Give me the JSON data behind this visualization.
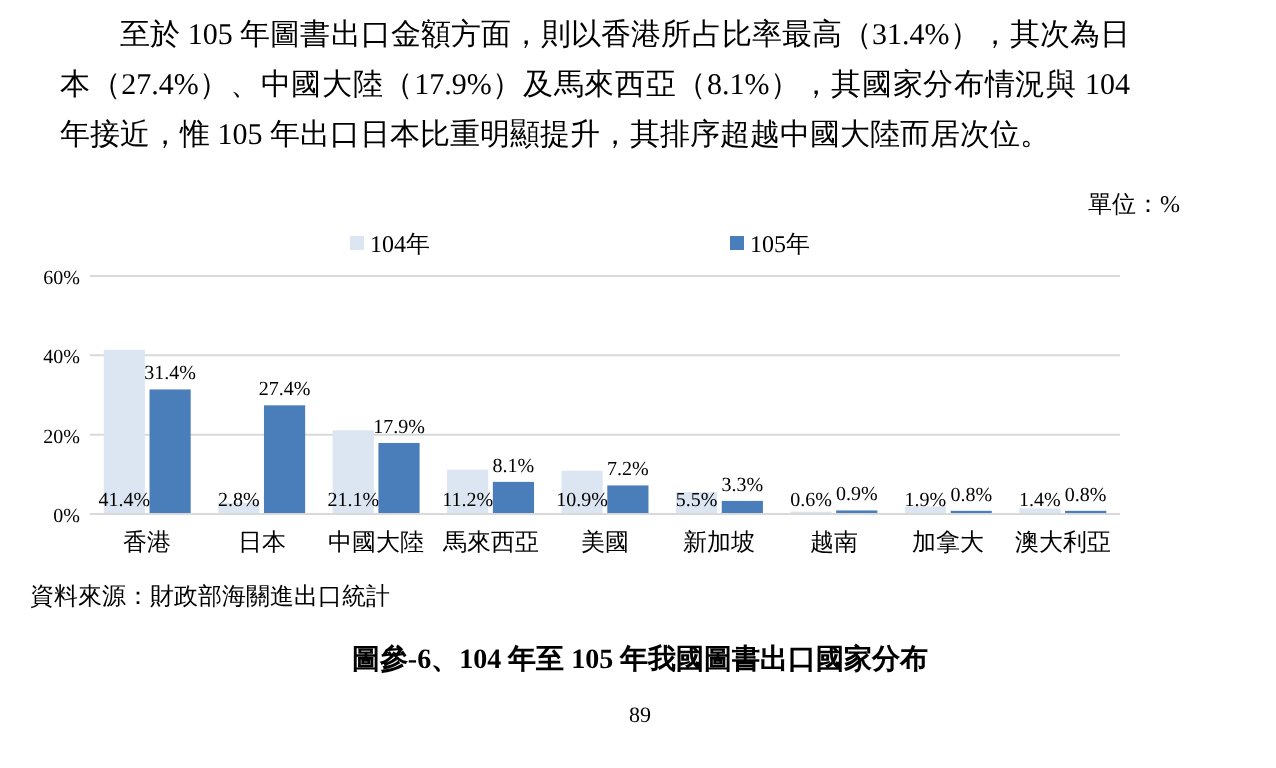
{
  "chart_data": {
    "type": "bar",
    "title": "圖參-6、104 年至 105 年我國圖書出口國家分布",
    "subtitle": "至於 105 年圖書出口金額方面，則以香港所占比率最高（31.4%），其次為日本（27.4%）、中國大陸（17.9%）及馬來西亞（8.1%），其國家分布情況與 104 年接近，惟 105 年出口日本比重明顯提升，其排序超越中國大陸而居次位。",
    "annotations": [
      "單位：%",
      "資料來源：財政部海關進出口統計",
      "89"
    ],
    "categories": [
      "香港",
      "日本",
      "中國大陸",
      "馬來西亞",
      "美國",
      "新加坡",
      "越南",
      "加拿大",
      "澳大利亞"
    ],
    "series": [
      {
        "name": "104年",
        "color": "#dce6f2",
        "values": [
          41.4,
          2.8,
          21.1,
          11.2,
          10.9,
          5.5,
          0.6,
          1.9,
          1.4
        ],
        "value_labels": [
          "41.4%",
          "2.8%",
          "21.1%",
          "11.2%",
          "10.9%",
          "5.5%",
          "0.6%",
          "1.9%",
          "1.4%"
        ]
      },
      {
        "name": "105年",
        "color": "#4a7ebb",
        "values": [
          31.4,
          27.4,
          17.9,
          8.1,
          7.2,
          3.3,
          0.9,
          0.8,
          0.8
        ],
        "value_labels": [
          "31.4%",
          "27.4%",
          "17.9%",
          "8.1%",
          "7.2%",
          "3.3%",
          "0.9%",
          "0.8%",
          "0.8%"
        ]
      }
    ],
    "ylim": [
      0,
      60
    ],
    "yticks": [
      {
        "value": 0,
        "label": "0%"
      },
      {
        "value": 20,
        "label": "20%"
      },
      {
        "value": 40,
        "label": "40%"
      },
      {
        "value": 60,
        "label": "60%"
      }
    ],
    "grid": "y",
    "legend": "top"
  }
}
